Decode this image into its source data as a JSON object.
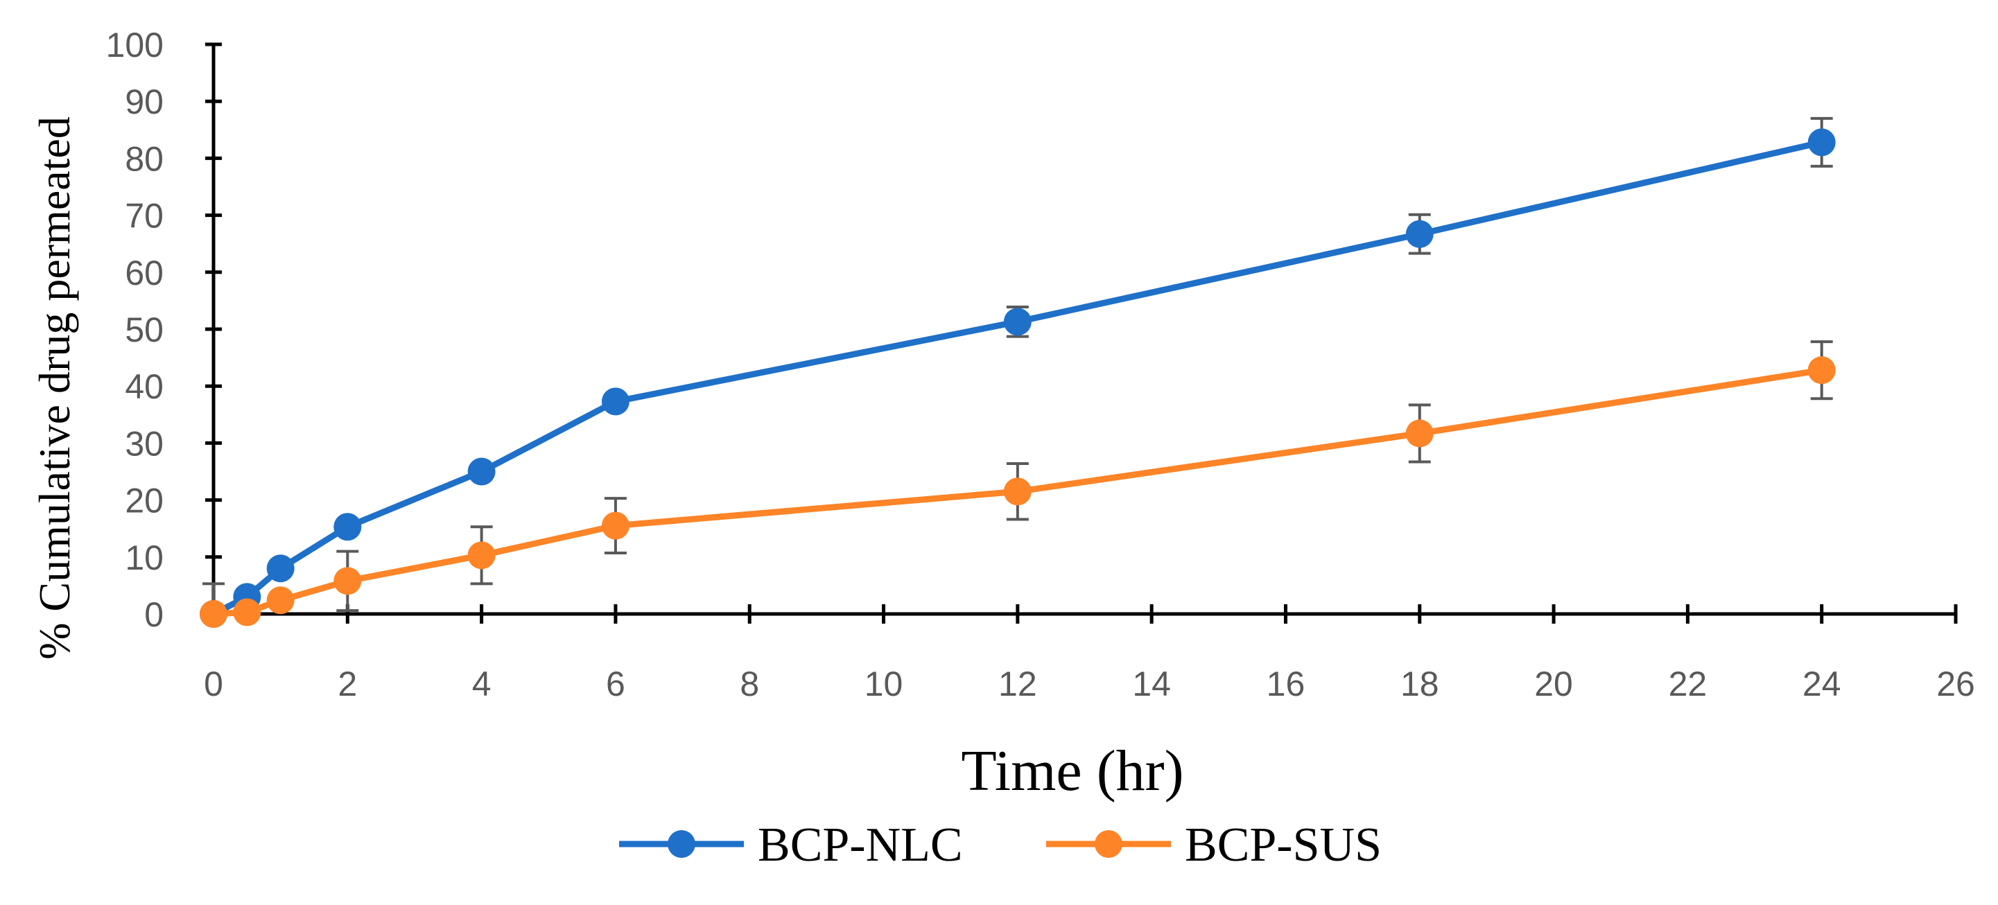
{
  "chart_data": {
    "type": "line",
    "title": "",
    "xlabel": "Time (hr)",
    "ylabel": "% Cumulative drug permeated",
    "xlim": [
      0,
      26
    ],
    "ylim": [
      0,
      100
    ],
    "xticks": [
      0,
      2,
      4,
      6,
      8,
      10,
      12,
      14,
      16,
      18,
      20,
      22,
      24,
      26
    ],
    "yticks": [
      0,
      10,
      20,
      30,
      40,
      50,
      60,
      70,
      80,
      90,
      100
    ],
    "grid": false,
    "legend_position": "bottom",
    "series": [
      {
        "name": "BCP-NLC",
        "color": "#1f70c8",
        "x": [
          0,
          0.5,
          1,
          2,
          4,
          6,
          12,
          18,
          24
        ],
        "y": [
          0,
          3,
          8,
          15.3,
          25,
          37.3,
          51.3,
          66.7,
          82.8
        ],
        "error": [
          0,
          0,
          0,
          0,
          0,
          1.2,
          2.6,
          3.4,
          4.2
        ]
      },
      {
        "name": "BCP-SUS",
        "color": "#fd8427",
        "x": [
          0,
          0.5,
          1,
          2,
          4,
          6,
          12,
          18,
          24
        ],
        "y": [
          0,
          0.3,
          2.4,
          5.8,
          10.3,
          15.5,
          21.5,
          31.7,
          42.8
        ],
        "error": [
          5.3,
          0,
          0,
          5.2,
          5,
          4.8,
          4.9,
          5,
          5
        ]
      }
    ]
  }
}
